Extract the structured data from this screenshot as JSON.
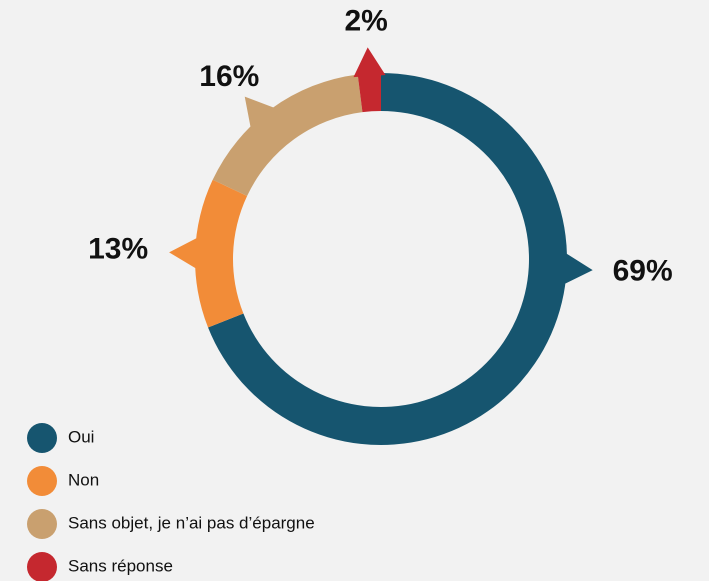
{
  "chart_data": {
    "type": "donut",
    "categories": [
      "Oui",
      "Non",
      "Sans objet, je n’ai pas d’épargne",
      "Sans réponse"
    ],
    "values": [
      69,
      13,
      16,
      2
    ],
    "value_labels": [
      "69%",
      "13%",
      "16%",
      "2%"
    ],
    "colors": [
      "#16556f",
      "#f28c38",
      "#c9a06f",
      "#c5282f"
    ]
  }
}
